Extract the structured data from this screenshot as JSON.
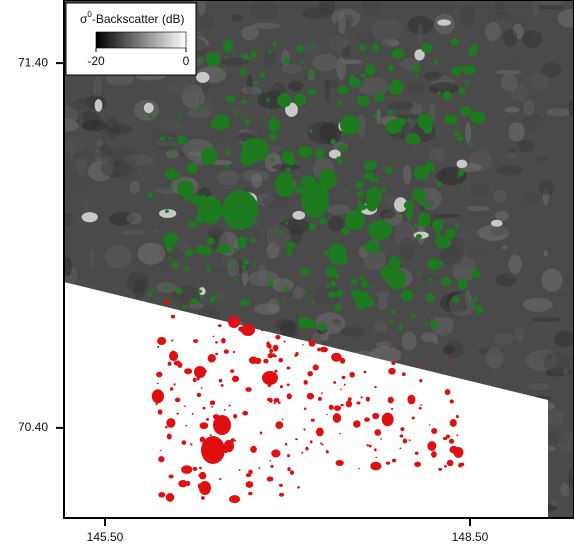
{
  "map": {
    "xlim": [
      145.163,
      149.355
    ],
    "ylim": [
      70.153,
      71.573
    ],
    "xticks": [
      {
        "value": 145.5,
        "label": "145.50"
      },
      {
        "value": 148.5,
        "label": "148.50"
      }
    ],
    "yticks": [
      {
        "value": 71.4,
        "label": "71.40"
      },
      {
        "value": 70.4,
        "label": "70.40"
      }
    ],
    "legend": {
      "title_symbol": "σ",
      "title_superscript": "0",
      "title_rest": "-Backscatter (dB)",
      "ticks": [
        -20,
        0
      ]
    }
  }
}
